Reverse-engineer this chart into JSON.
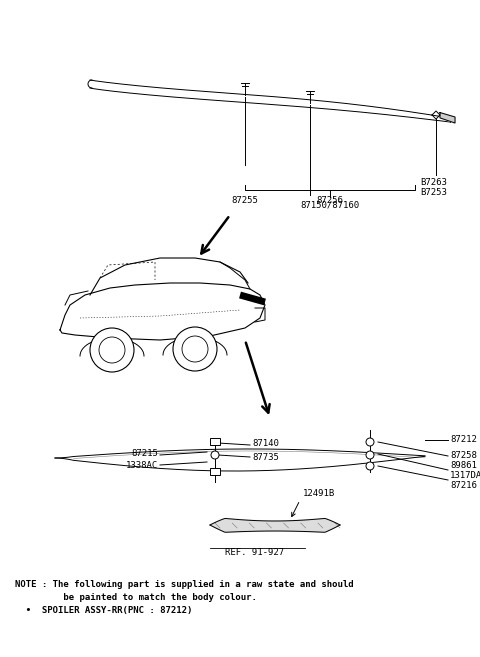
{
  "bg_color": "#ffffff",
  "note_line1": "NOTE : The following part is supplied in a raw state and should",
  "note_line2": "         be painted to match the body colour.",
  "note_line3": "  •  SPOILER ASSY-RR(PNC : 87212)"
}
